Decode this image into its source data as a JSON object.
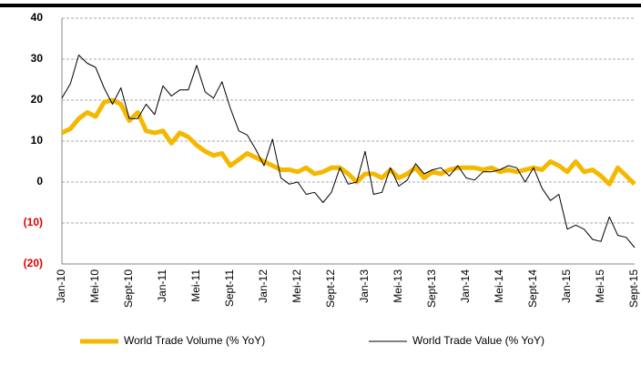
{
  "chart_data": {
    "type": "line",
    "categories": [
      "Jan-10",
      null,
      null,
      null,
      "Mei-10",
      null,
      null,
      null,
      "Sept-10",
      null,
      null,
      null,
      "Jan-11",
      null,
      null,
      null,
      "Mei-11",
      null,
      null,
      null,
      "Sept-11",
      null,
      null,
      null,
      "Jan-12",
      null,
      null,
      null,
      "Mei-12",
      null,
      null,
      null,
      "Sept-12",
      null,
      null,
      null,
      "Jan-13",
      null,
      null,
      null,
      "Mei-13",
      null,
      null,
      null,
      "Sept-13",
      null,
      null,
      null,
      "Jan-14",
      null,
      null,
      null,
      "Mei-14",
      null,
      null,
      null,
      "Sept-14",
      null,
      null,
      null,
      "Jan-15",
      null,
      null,
      null,
      "Mei-15",
      null,
      null,
      null,
      "Sept-15"
    ],
    "series": [
      {
        "name": "World Trade Volume (% YoY)",
        "color": "#f5b800",
        "width": 5,
        "values": [
          12,
          13,
          15.5,
          17,
          16,
          19.5,
          20,
          19,
          15,
          17,
          12.5,
          12,
          12.5,
          9.5,
          12,
          11,
          9,
          7.5,
          6.5,
          7,
          4,
          5.5,
          7,
          6,
          5,
          4,
          3,
          3,
          2.5,
          3.5,
          2,
          2.5,
          3.5,
          3.5,
          2,
          0,
          2,
          2,
          1,
          3,
          1,
          2,
          3.5,
          1,
          2.5,
          2,
          3,
          3.5,
          3.5,
          3.5,
          3,
          3.5,
          2.5,
          3,
          2.5,
          3,
          3.5,
          3,
          5,
          4,
          2.5,
          5,
          2.5,
          3,
          1.5,
          -0.5,
          3.5,
          1.5,
          -0.5
        ]
      },
      {
        "name": "World Trade Value (% YoY)",
        "color": "#000000",
        "width": 1,
        "values": [
          20.5,
          24,
          31,
          29,
          28,
          23,
          19,
          23,
          15.5,
          15.5,
          19,
          16.5,
          23.5,
          21,
          22.5,
          22.5,
          28.5,
          22,
          20.5,
          24.5,
          18,
          12.5,
          11.5,
          8,
          4,
          10.5,
          1,
          -0.5,
          0,
          -3,
          -2.5,
          -5,
          -2.5,
          3.5,
          -0.5,
          0,
          7.5,
          -3,
          -2.5,
          3.5,
          -1,
          0.5,
          4.5,
          2,
          3,
          3.5,
          1.5,
          4,
          1,
          0.5,
          2.5,
          2.5,
          3,
          4,
          3.5,
          0,
          3.5,
          -1.5,
          -4.5,
          -3,
          -11.5,
          -10.5,
          -11.5,
          -14,
          -14.5,
          -8.5,
          -13,
          -13.5,
          -16
        ]
      }
    ],
    "ylim": [
      -20,
      40
    ],
    "yticks": [
      {
        "value": -20,
        "label": "(20)"
      },
      {
        "value": -10,
        "label": "(10)"
      },
      0,
      10,
      20,
      30,
      40
    ],
    "negative_tick_color": "#e00000",
    "grid": true
  }
}
